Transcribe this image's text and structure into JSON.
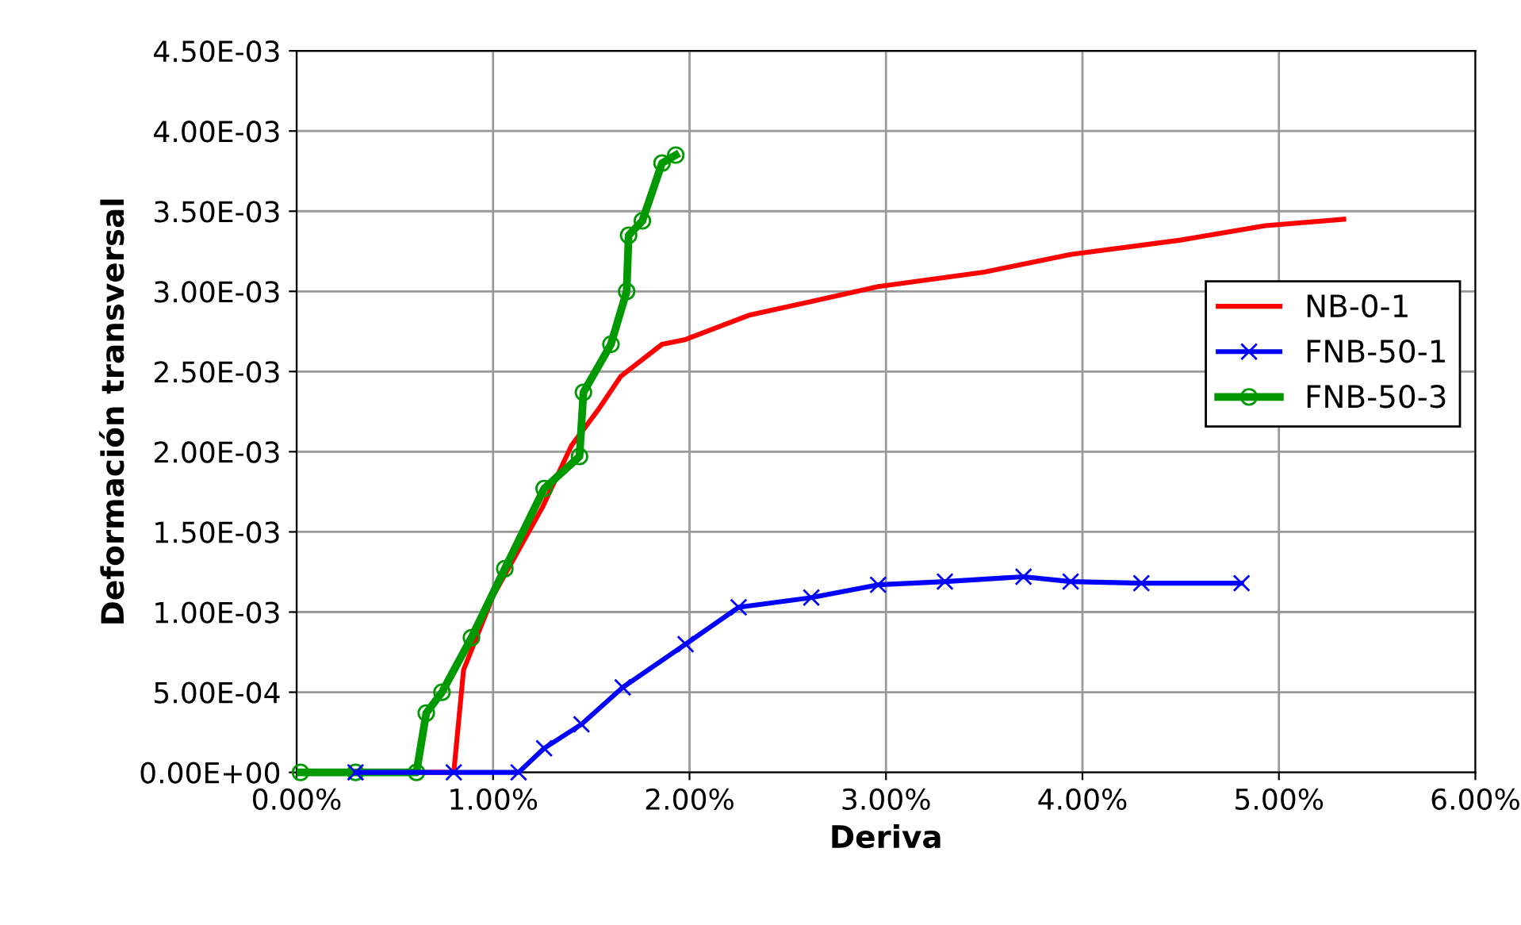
{
  "chart_data": {
    "type": "line",
    "xlabel": "Deriva",
    "ylabel": "Deformación transversal",
    "xlim": [
      0,
      6
    ],
    "xticks": [
      {
        "value": 0,
        "label": "0.00%"
      },
      {
        "value": 1,
        "label": "1.00%"
      },
      {
        "value": 2,
        "label": "2.00%"
      },
      {
        "value": 3,
        "label": "3.00%"
      },
      {
        "value": 4,
        "label": "4.00%"
      },
      {
        "value": 5,
        "label": "5.00%"
      },
      {
        "value": 6,
        "label": "6.00%"
      }
    ],
    "ylim": [
      0,
      0.0045
    ],
    "yticks": [
      {
        "value": 0,
        "label": "0.00E+00"
      },
      {
        "value": 0.0005,
        "label": "5.00E-04"
      },
      {
        "value": 0.001,
        "label": "1.00E-03"
      },
      {
        "value": 0.0015,
        "label": "1.50E-03"
      },
      {
        "value": 0.002,
        "label": "2.00E-03"
      },
      {
        "value": 0.0025,
        "label": "2.50E-03"
      },
      {
        "value": 0.003,
        "label": "3.00E-03"
      },
      {
        "value": 0.0035,
        "label": "3.50E-03"
      },
      {
        "value": 0.004,
        "label": "4.00E-03"
      },
      {
        "value": 0.0045,
        "label": "4.50E-03"
      }
    ],
    "grid": true,
    "legend": "right",
    "series": [
      {
        "name": "NB-0-1",
        "color": "#ff0000",
        "marker": "none",
        "x": [
          0.5,
          0.8,
          0.85,
          1.0,
          1.25,
          1.4,
          1.54,
          1.65,
          1.86,
          1.98,
          2.3,
          2.96,
          3.5,
          3.94,
          4.5,
          4.93,
          5.33
        ],
        "values": [
          0,
          0,
          0.00064,
          0.0011,
          0.00165,
          0.00204,
          0.00227,
          0.00247,
          0.00267,
          0.0027,
          0.00285,
          0.00303,
          0.00312,
          0.00323,
          0.00332,
          0.00341,
          0.00345
        ]
      },
      {
        "name": "FNB-50-1",
        "color": "#0000ff",
        "marker": "cross",
        "x": [
          0.3,
          0.8,
          1.13,
          1.26,
          1.45,
          1.66,
          1.98,
          2.25,
          2.62,
          2.96,
          3.3,
          3.7,
          3.94,
          4.3,
          4.81
        ],
        "values": [
          0,
          0,
          0,
          0.00015,
          0.0003,
          0.00053,
          0.0008,
          0.00103,
          0.00109,
          0.00117,
          0.00119,
          0.00122,
          0.00119,
          0.00118,
          0.00118
        ]
      },
      {
        "name": "FNB-50-3",
        "color": "#009900",
        "marker": "circle",
        "x": [
          0.02,
          0.3,
          0.61,
          0.66,
          0.74,
          0.89,
          1.06,
          1.26,
          1.44,
          1.46,
          1.6,
          1.68,
          1.69,
          1.76,
          1.86,
          1.93
        ],
        "values": [
          0,
          0,
          0,
          0.00037,
          0.0005,
          0.00084,
          0.00127,
          0.00177,
          0.00197,
          0.00237,
          0.00267,
          0.003,
          0.00335,
          0.00344,
          0.0038,
          0.00385
        ]
      }
    ]
  }
}
